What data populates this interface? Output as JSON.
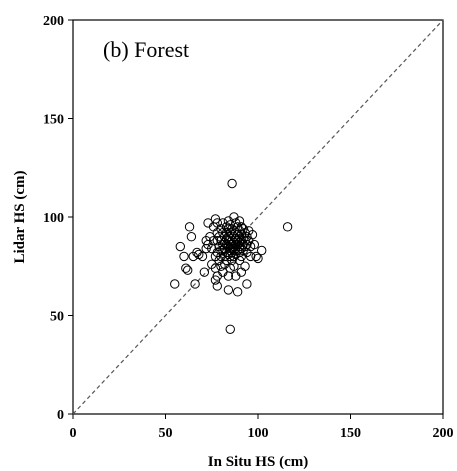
{
  "chart_data": {
    "type": "scatter",
    "title": "(b) Forest",
    "xlabel": "In Situ HS (cm)",
    "ylabel": "Lidar HS (cm)",
    "xlim": [
      0,
      200
    ],
    "ylim": [
      0,
      200
    ],
    "xticks": [
      "0",
      "50",
      "100",
      "150",
      "200"
    ],
    "yticks": [
      "0",
      "50",
      "100",
      "150",
      "200"
    ],
    "reference_line": "1:1 dashed",
    "marker": "open circle",
    "grid": false,
    "colors": {
      "marker": "#000000",
      "line": "#555555"
    },
    "points": [
      [
        55,
        66
      ],
      [
        58,
        85
      ],
      [
        60,
        80
      ],
      [
        61,
        74
      ],
      [
        62,
        73
      ],
      [
        63,
        95
      ],
      [
        64,
        90
      ],
      [
        65,
        80
      ],
      [
        66,
        66
      ],
      [
        67,
        82
      ],
      [
        68,
        81
      ],
      [
        70,
        80
      ],
      [
        71,
        72
      ],
      [
        72,
        84
      ],
      [
        72,
        88
      ],
      [
        73,
        86
      ],
      [
        73,
        97
      ],
      [
        74,
        90
      ],
      [
        75,
        76
      ],
      [
        75,
        84
      ],
      [
        76,
        95
      ],
      [
        76,
        88
      ],
      [
        77,
        99
      ],
      [
        77,
        80
      ],
      [
        77,
        74
      ],
      [
        77,
        68
      ],
      [
        78,
        82
      ],
      [
        78,
        88
      ],
      [
        78,
        92
      ],
      [
        78,
        97
      ],
      [
        78,
        70
      ],
      [
        78,
        65
      ],
      [
        79,
        90
      ],
      [
        79,
        85
      ],
      [
        79,
        78
      ],
      [
        80,
        94
      ],
      [
        80,
        88
      ],
      [
        80,
        83
      ],
      [
        80,
        80
      ],
      [
        80,
        75
      ],
      [
        81,
        97
      ],
      [
        81,
        92
      ],
      [
        81,
        86
      ],
      [
        81,
        83
      ],
      [
        81,
        72
      ],
      [
        82,
        90
      ],
      [
        82,
        87
      ],
      [
        82,
        84
      ],
      [
        82,
        80
      ],
      [
        82,
        76
      ],
      [
        83,
        95
      ],
      [
        83,
        92
      ],
      [
        83,
        89
      ],
      [
        83,
        86
      ],
      [
        83,
        82
      ],
      [
        83,
        78
      ],
      [
        84,
        98
      ],
      [
        84,
        94
      ],
      [
        84,
        90
      ],
      [
        84,
        88
      ],
      [
        84,
        85
      ],
      [
        84,
        81
      ],
      [
        84,
        70
      ],
      [
        84,
        63
      ],
      [
        85,
        96
      ],
      [
        85,
        92
      ],
      [
        85,
        89
      ],
      [
        85,
        86
      ],
      [
        85,
        83
      ],
      [
        85,
        80
      ],
      [
        85,
        74
      ],
      [
        85,
        43
      ],
      [
        86,
        117
      ],
      [
        86,
        94
      ],
      [
        86,
        91
      ],
      [
        86,
        88
      ],
      [
        86,
        86
      ],
      [
        86,
        84
      ],
      [
        86,
        82
      ],
      [
        86,
        78
      ],
      [
        87,
        100
      ],
      [
        87,
        93
      ],
      [
        87,
        90
      ],
      [
        87,
        87
      ],
      [
        87,
        85
      ],
      [
        87,
        83
      ],
      [
        87,
        80
      ],
      [
        87,
        75
      ],
      [
        88,
        97
      ],
      [
        88,
        92
      ],
      [
        88,
        89
      ],
      [
        88,
        86
      ],
      [
        88,
        84
      ],
      [
        88,
        81
      ],
      [
        88,
        70
      ],
      [
        89,
        95
      ],
      [
        89,
        91
      ],
      [
        89,
        88
      ],
      [
        89,
        86
      ],
      [
        89,
        83
      ],
      [
        89,
        62
      ],
      [
        90,
        98
      ],
      [
        90,
        93
      ],
      [
        90,
        90
      ],
      [
        90,
        87
      ],
      [
        90,
        85
      ],
      [
        90,
        82
      ],
      [
        90,
        78
      ],
      [
        91,
        95
      ],
      [
        91,
        91
      ],
      [
        91,
        88
      ],
      [
        91,
        84
      ],
      [
        91,
        80
      ],
      [
        91,
        72
      ],
      [
        92,
        94
      ],
      [
        92,
        89
      ],
      [
        92,
        86
      ],
      [
        92,
        83
      ],
      [
        93,
        92
      ],
      [
        93,
        88
      ],
      [
        93,
        85
      ],
      [
        93,
        75
      ],
      [
        94,
        90
      ],
      [
        94,
        86
      ],
      [
        94,
        82
      ],
      [
        94,
        66
      ],
      [
        95,
        93
      ],
      [
        95,
        88
      ],
      [
        96,
        85
      ],
      [
        96,
        80
      ],
      [
        97,
        91
      ],
      [
        98,
        86
      ],
      [
        99,
        80
      ],
      [
        100,
        79
      ],
      [
        102,
        83
      ],
      [
        116,
        95
      ]
    ]
  }
}
